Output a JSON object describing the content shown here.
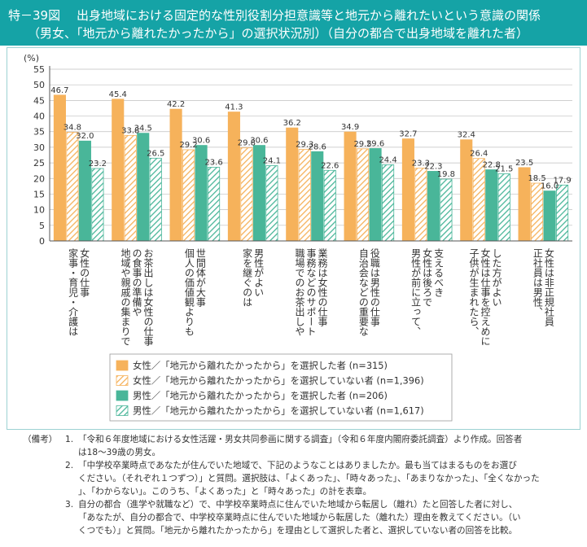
{
  "title": {
    "number": "特－39図",
    "line1": "出身地域における固定的な性別役割分担意識等と地元から離れたいという意識の関係",
    "line2": "（男女、「地元から離れたかったから」の選択状況別）（自分の都合で出身地域を離れた者）"
  },
  "chart_data": {
    "type": "bar",
    "ylabel": "(%)",
    "ylim": [
      0,
      55
    ],
    "yticks": [
      0,
      5,
      10,
      15,
      20,
      25,
      30,
      35,
      40,
      45,
      50,
      55
    ],
    "categories": [
      "女性の仕事家事・育児・介護は",
      "お茶出しは女性の仕事の食事の準備や地域や親戚の集まりで",
      "世間体が大事個人の価値観よりも",
      "男性がよい家を継ぐのは",
      "業務は女性の仕事事務などのサポート職場でのお茶出しや",
      "役職は男性の仕事自治会などの重要な",
      "支えるべき女性は後ろで男性が前に立って、",
      "した方がよい女性は仕事を控えめに子供が生まれたら、",
      "女性は非正規社員正社員は男性、"
    ],
    "category_lines": [
      [
        "女性の仕事",
        "家事・育児・介護は"
      ],
      [
        "お茶出しは女性の仕事",
        "の食事の準備や",
        "地域や親戚の集まりで"
      ],
      [
        "世間体が大事",
        "個人の価値観よりも"
      ],
      [
        "男性がよい",
        "家を継ぐのは"
      ],
      [
        "業務は女性の仕事",
        "事務などのサポート",
        "職場でのお茶出しや"
      ],
      [
        "役職は男性の仕事",
        "自治会などの重要な"
      ],
      [
        "支えるべき",
        "女性は後ろで",
        "男性が前に立って、"
      ],
      [
        "した方がよい",
        "女性は仕事を控えめに",
        "子供が生まれたら、"
      ],
      [
        "女性は非正規社員",
        "正社員は男性、"
      ]
    ],
    "series": [
      {
        "name": "女性／「地元から離れたかったから」を選択した者 (n=315)",
        "values": [
          46.7,
          45.4,
          42.2,
          41.3,
          36.2,
          34.9,
          32.7,
          32.4,
          23.5
        ]
      },
      {
        "name": "女性／「地元から離れたかったから」を選択していない者 (n=1,396)",
        "values": [
          34.8,
          33.8,
          29.2,
          29.8,
          29.3,
          29.5,
          23.3,
          26.4,
          18.5
        ]
      },
      {
        "name": "男性／「地元から離れたかったから」を選択した者 (n=206)",
        "values": [
          32.0,
          34.5,
          30.6,
          30.6,
          28.6,
          29.6,
          22.3,
          22.8,
          16.0
        ]
      },
      {
        "name": "男性／「地元から離れたかったから」を選択していない者 (n=1,617)",
        "values": [
          23.2,
          26.5,
          23.6,
          24.1,
          22.6,
          24.4,
          19.8,
          21.5,
          17.9
        ]
      }
    ],
    "colors": {
      "female_selected": "#f6b25b",
      "female_not_selected": "#f6b25b",
      "male_selected": "#49b699",
      "male_not_selected": "#49b699",
      "axis": "#555555",
      "grid": "#bfbfbf"
    },
    "fills": [
      "solid",
      "hatched",
      "solid",
      "hatched"
    ],
    "grid": true,
    "legend_position": "bottom"
  },
  "notes": {
    "tag": "（備考）",
    "items": [
      {
        "num": "1.",
        "lines": [
          "「令和６年度地域における女性活躍・男女共同参画に関する調査」（令和６年度内閣府委託調査）より作成。回答者",
          "は18～39歳の男女。"
        ]
      },
      {
        "num": "2.",
        "lines": [
          "「中学校卒業時点であなたが住んでいた地域で、下記のようなことはありましたか。最も当てはまるものをお選び",
          "ください。（それぞれ１つずつ）」と質問。選択肢は、「よくあった」、「時々あった」、「あまりなかった」、「全くなかった",
          "」、「わからない」。このうち、「よくあった」と「時々あった」の計を表章。"
        ]
      },
      {
        "num": "3.",
        "lines": [
          "自分の都合（進学や就職など）で、中学校卒業時点に住んでいた地域から転居し（離れ）たと回答した者に対し、",
          "「あなたが、自分の都合で、中学校卒業時点に住んでいた地域から転居した（離れた）理由を教えてください。（い",
          "くつでも）」と質問。「地元から離れたかったから」を理由として選択した者と、選択していない者の回答を比較。"
        ]
      }
    ]
  }
}
